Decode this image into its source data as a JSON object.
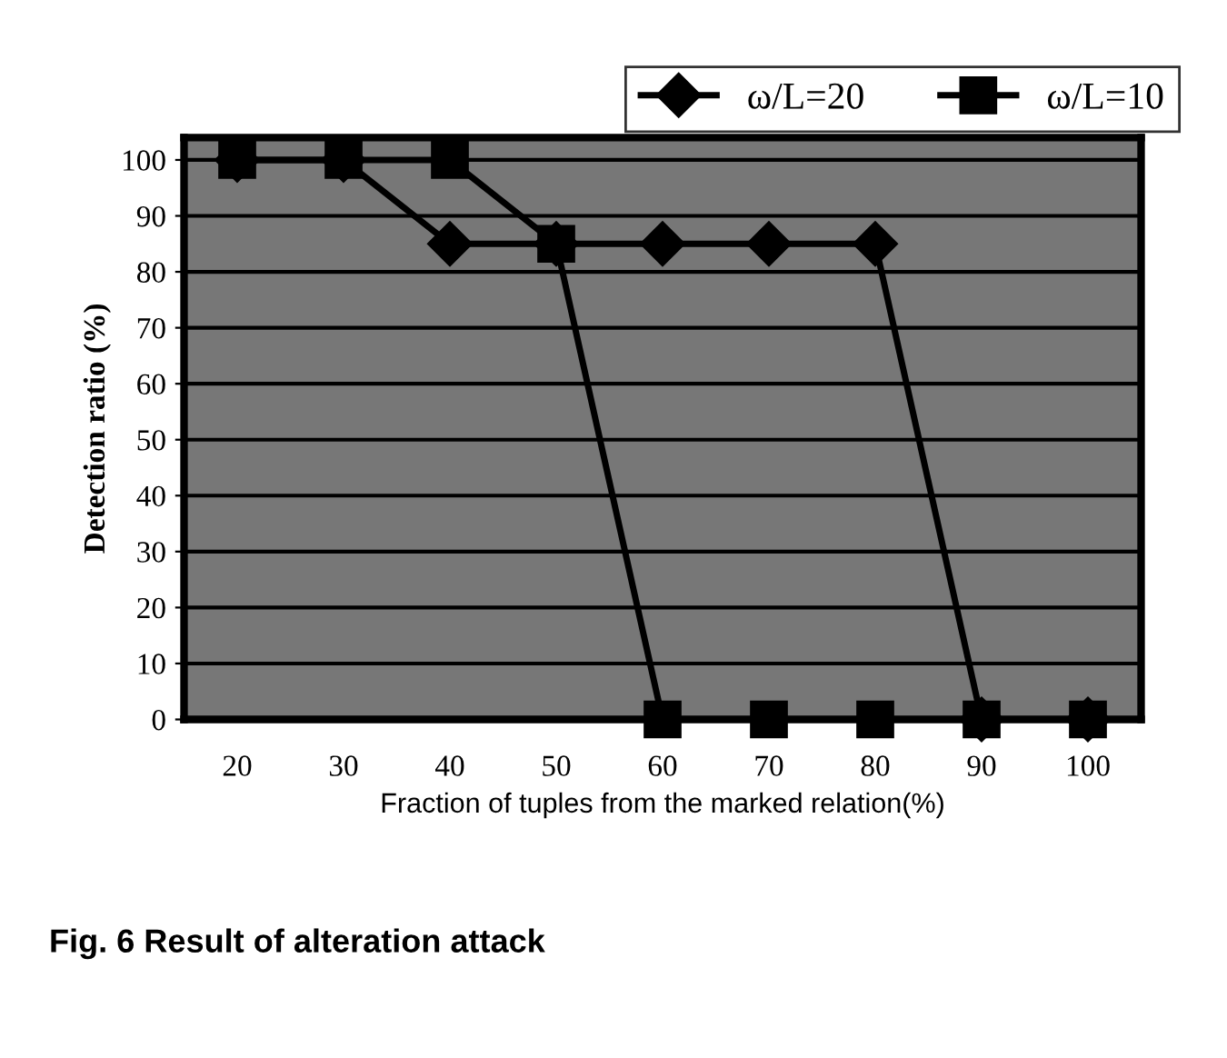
{
  "chart_data": {
    "type": "line",
    "xlabel": "Fraction of tuples from the marked relation(%)",
    "ylabel": "Detection ratio (%)",
    "categories": [
      "20",
      "30",
      "40",
      "50",
      "60",
      "70",
      "80",
      "90",
      "100"
    ],
    "series": [
      {
        "name": "ω/L=20",
        "color": "#000000",
        "marker": "diamond",
        "values": [
          100,
          100,
          85,
          85,
          85,
          85,
          85,
          0,
          0
        ]
      },
      {
        "name": "ω/L=10",
        "color": "#000000",
        "marker": "square",
        "values": [
          100,
          100,
          100,
          85,
          0,
          0,
          0,
          0,
          0
        ]
      }
    ],
    "ylim": [
      0,
      104
    ],
    "yticks": [
      0,
      10,
      20,
      30,
      40,
      50,
      60,
      70,
      80,
      90,
      100
    ],
    "grid": "y",
    "legend": "top right",
    "annotations": [
      "Fig. 6 Result of alteration attack"
    ]
  }
}
